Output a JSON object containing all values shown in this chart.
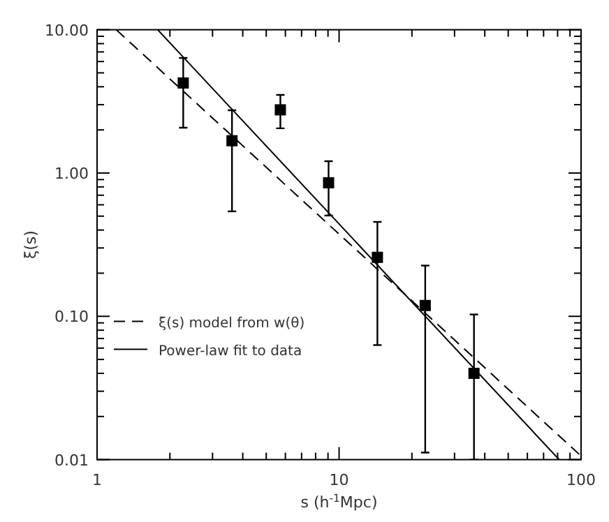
{
  "chart_data": {
    "type": "scatter",
    "xlabel": "s (h$^{-1}$Mpc)",
    "ylabel": "ξ(s)",
    "log": "xy",
    "xlim": [
      1,
      100
    ],
    "ylim": [
      0.01,
      10
    ],
    "xticks": [
      1,
      {
        "value": 2,
        "label": null
      },
      {
        "value": 3,
        "label": null
      },
      {
        "value": 4,
        "label": null
      },
      {
        "value": 5,
        "label": null
      },
      {
        "value": 6,
        "label": null
      },
      {
        "value": 7,
        "label": null
      },
      {
        "value": 8,
        "label": null
      },
      {
        "value": 9,
        "label": null
      },
      10,
      {
        "value": 20,
        "label": null
      },
      {
        "value": 30,
        "label": null
      },
      {
        "value": 40,
        "label": null
      },
      {
        "value": 50,
        "label": null
      },
      {
        "value": 60,
        "label": null
      },
      {
        "value": 70,
        "label": null
      },
      {
        "value": 80,
        "label": null
      },
      {
        "value": 90,
        "label": null
      },
      100
    ],
    "yticks": [
      {
        "value": 0.01,
        "label": "0.01"
      },
      {
        "value": 0.02,
        "label": null
      },
      {
        "value": 0.03,
        "label": null
      },
      {
        "value": 0.04,
        "label": null
      },
      {
        "value": 0.05,
        "label": null
      },
      {
        "value": 0.06,
        "label": null
      },
      {
        "value": 0.07,
        "label": null
      },
      {
        "value": 0.08,
        "label": null
      },
      {
        "value": 0.09,
        "label": null
      },
      {
        "value": 0.1,
        "label": "0.10"
      },
      {
        "value": 0.2,
        "label": null
      },
      {
        "value": 0.3,
        "label": null
      },
      {
        "value": 0.4,
        "label": null
      },
      {
        "value": 0.5,
        "label": null
      },
      {
        "value": 0.6,
        "label": null
      },
      {
        "value": 0.7,
        "label": null
      },
      {
        "value": 0.8,
        "label": null
      },
      {
        "value": 0.9,
        "label": null
      },
      {
        "value": 1,
        "label": "1.00"
      },
      {
        "value": 2,
        "label": null
      },
      {
        "value": 3,
        "label": null
      },
      {
        "value": 4,
        "label": null
      },
      {
        "value": 5,
        "label": null
      },
      {
        "value": 6,
        "label": null
      },
      {
        "value": 7,
        "label": null
      },
      {
        "value": 8,
        "label": null
      },
      {
        "value": 9,
        "label": null
      },
      {
        "value": 10,
        "label": "10.00"
      }
    ],
    "grid": false,
    "legend": "left",
    "series": [
      {
        "color": "#000000",
        "marker": "square",
        "x": [
          2.27,
          3.61,
          5.72,
          9.05,
          14.4,
          22.7,
          36.1
        ],
        "values": [
          4.25,
          1.68,
          2.76,
          0.855,
          0.258,
          0.119,
          0.04
        ],
        "errors": [
          [
            2.07,
            6.36
          ],
          [
            0.54,
            2.74
          ],
          [
            2.05,
            3.51
          ],
          [
            0.505,
            1.21
          ],
          [
            0.063,
            0.456
          ],
          [
            0.0112,
            0.226
          ],
          [
            0.01,
            0.103
          ]
        ]
      },
      {
        "type": "line",
        "name": "ξ(s) model from w(θ)",
        "color": "#000000",
        "line_style": "dashed",
        "x": [
          1.2,
          100
        ],
        "values": [
          10,
          0.0106
        ]
      },
      {
        "type": "line",
        "name": "Power-law fit to data",
        "color": "#000000",
        "line_style": "solid",
        "x": [
          1.78,
          81.2
        ],
        "values": [
          10,
          0.01
        ]
      }
    ]
  }
}
